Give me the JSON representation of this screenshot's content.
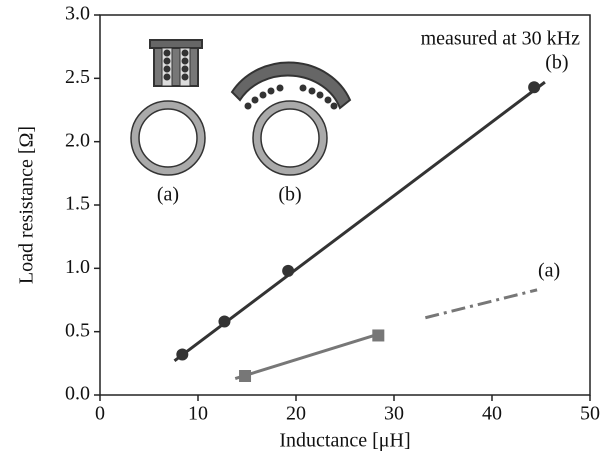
{
  "chart_data": {
    "type": "scatter",
    "x_label": "Inductance [μH]",
    "y_label": "Load resistance [Ω]",
    "annotation": "measured at 30 kHz",
    "inset_labels": [
      "(a)",
      "(b)"
    ],
    "xlim": [
      0,
      50
    ],
    "xticks": [
      0,
      10,
      20,
      30,
      40,
      50
    ],
    "ylim": [
      0,
      3
    ],
    "yticks": [
      {
        "value": 0,
        "label": "0.0"
      },
      0.5,
      {
        "value": 1,
        "label": "1.0"
      },
      1.5,
      {
        "value": 2,
        "label": "2.0"
      },
      2.5,
      {
        "value": 3,
        "label": "3.0"
      }
    ],
    "series": [
      {
        "name": "(b)",
        "color": "#333333",
        "marker": "circle",
        "x": [
          8.4,
          12.7,
          19.2,
          44.3
        ],
        "values": [
          0.32,
          0.58,
          0.98,
          2.43
        ],
        "fit_x": [
          7.6,
          45.4
        ],
        "fit_values": [
          0.27,
          2.47
        ]
      },
      {
        "name": "(a)",
        "color": "#777777",
        "marker": "square",
        "x": [
          14.8,
          28.4
        ],
        "values": [
          0.15,
          0.47
        ],
        "fit_x": [
          13.8,
          28.4
        ],
        "fit_values": [
          0.13,
          0.48
        ],
        "extrapolation_x": [
          33.2,
          44.6
        ],
        "extrapolation_values": [
          0.61,
          0.83
        ]
      }
    ]
  }
}
